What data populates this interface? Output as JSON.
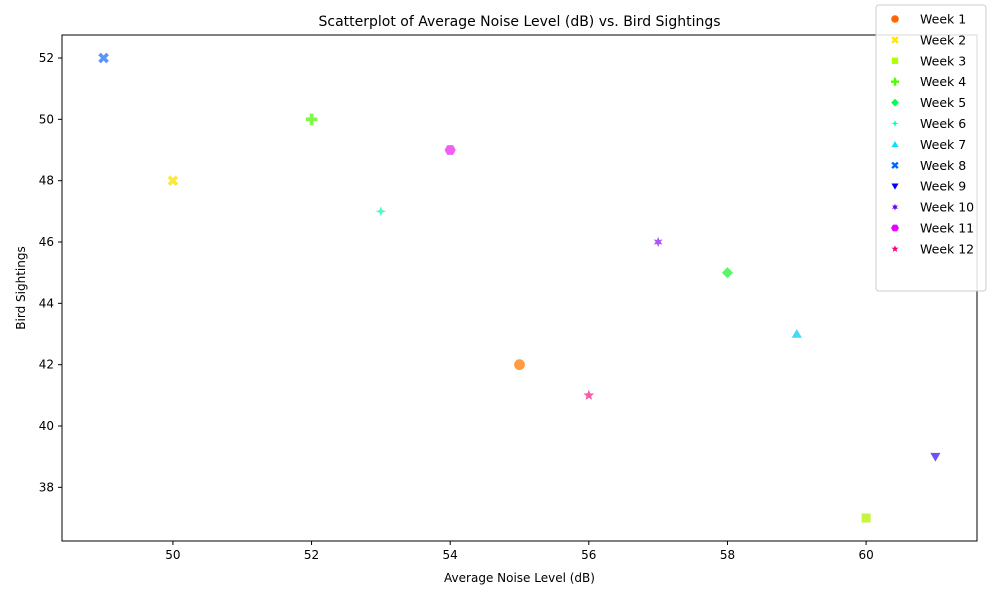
{
  "chart_data": {
    "type": "scatter",
    "title": "Scatterplot of Average Noise Level (dB) vs. Bird Sightings",
    "xlabel": "Average Noise Level (dB)",
    "ylabel": "Bird Sightings",
    "xlim": [
      48.4,
      61.6
    ],
    "ylim": [
      36.25,
      52.75
    ],
    "xticks": [
      50,
      52,
      54,
      56,
      58,
      60
    ],
    "yticks": [
      38,
      40,
      42,
      44,
      46,
      48,
      50,
      52
    ],
    "grid": false,
    "legend_position": "top-right",
    "series": [
      {
        "name": "Week 1",
        "x": 55,
        "y": 42,
        "marker": "circle",
        "color": "#fe9b43"
      },
      {
        "name": "Week 2",
        "x": 50,
        "y": 48,
        "marker": "x-filled",
        "color": "#f9e93e"
      },
      {
        "name": "Week 3",
        "x": 60,
        "y": 37,
        "marker": "square",
        "color": "#c5f53e"
      },
      {
        "name": "Week 4",
        "x": 52,
        "y": 50,
        "marker": "plus-filled",
        "color": "#7ff745"
      },
      {
        "name": "Week 5",
        "x": 58,
        "y": 45,
        "marker": "diamond",
        "color": "#59f66b"
      },
      {
        "name": "Week 6",
        "x": 53,
        "y": 47,
        "marker": "star4",
        "color": "#4ef7c7"
      },
      {
        "name": "Week 7",
        "x": 59,
        "y": 43,
        "marker": "triangle-up",
        "color": "#45d8f7"
      },
      {
        "name": "Week 8",
        "x": 49,
        "y": 52,
        "marker": "x-filled",
        "color": "#5b95f6"
      },
      {
        "name": "Week 9",
        "x": 61,
        "y": 39,
        "marker": "triangle-down",
        "color": "#6a55f4"
      },
      {
        "name": "Week 10",
        "x": 57,
        "y": 46,
        "marker": "star6",
        "color": "#b056f5"
      },
      {
        "name": "Week 11",
        "x": 54,
        "y": 49,
        "marker": "hexagon",
        "color": "#f25ef5"
      },
      {
        "name": "Week 12",
        "x": 56,
        "y": 41,
        "marker": "star5",
        "color": "#f75aa8"
      }
    ],
    "legend_colors": [
      "#ff6600",
      "#ffe600",
      "#b3ff00",
      "#4dff00",
      "#00ff4d",
      "#00ffb3",
      "#00e6ff",
      "#0066ff",
      "#0000ff",
      "#6600ff",
      "#e600ff",
      "#ff0080"
    ]
  }
}
